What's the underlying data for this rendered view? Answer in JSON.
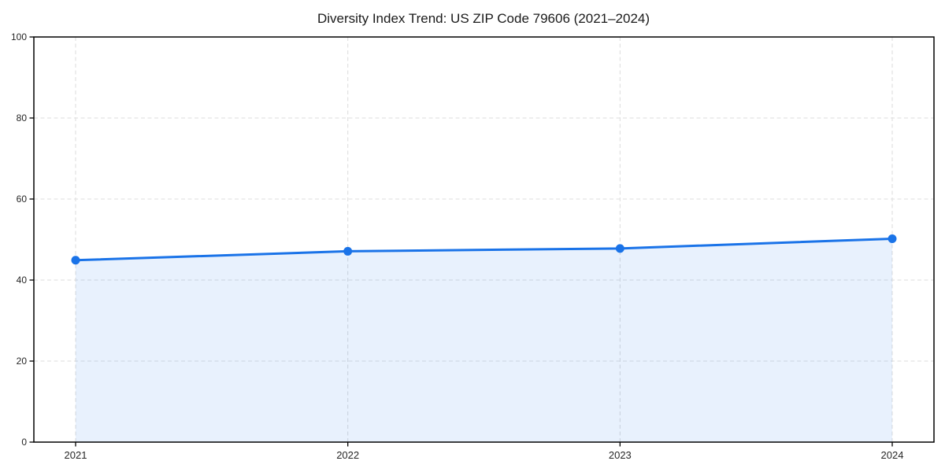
{
  "chart_data": {
    "type": "line",
    "title": "Diversity Index Trend: US ZIP Code 79606 (2021–2024)",
    "categories": [
      "2021",
      "2022",
      "2023",
      "2024"
    ],
    "series": [
      {
        "name": "Diversity Index",
        "values": [
          44.9,
          47.1,
          47.8,
          50.2
        ]
      }
    ],
    "xlabel": "",
    "ylabel": "",
    "ylim": [
      0,
      100
    ],
    "yticks": [
      0,
      20,
      40,
      60,
      80,
      100
    ],
    "grid": true,
    "grid_style": "dashed",
    "area_fill": true,
    "legend_position": "none",
    "colors": {
      "line": "#1a73e8",
      "marker": "#1a73e8",
      "area": "rgba(26,115,232,0.10)",
      "grid": "#dedede",
      "spine": "#000000",
      "tick_text": "#262626",
      "title_text": "#1a1a1a",
      "background": "#ffffff"
    }
  }
}
